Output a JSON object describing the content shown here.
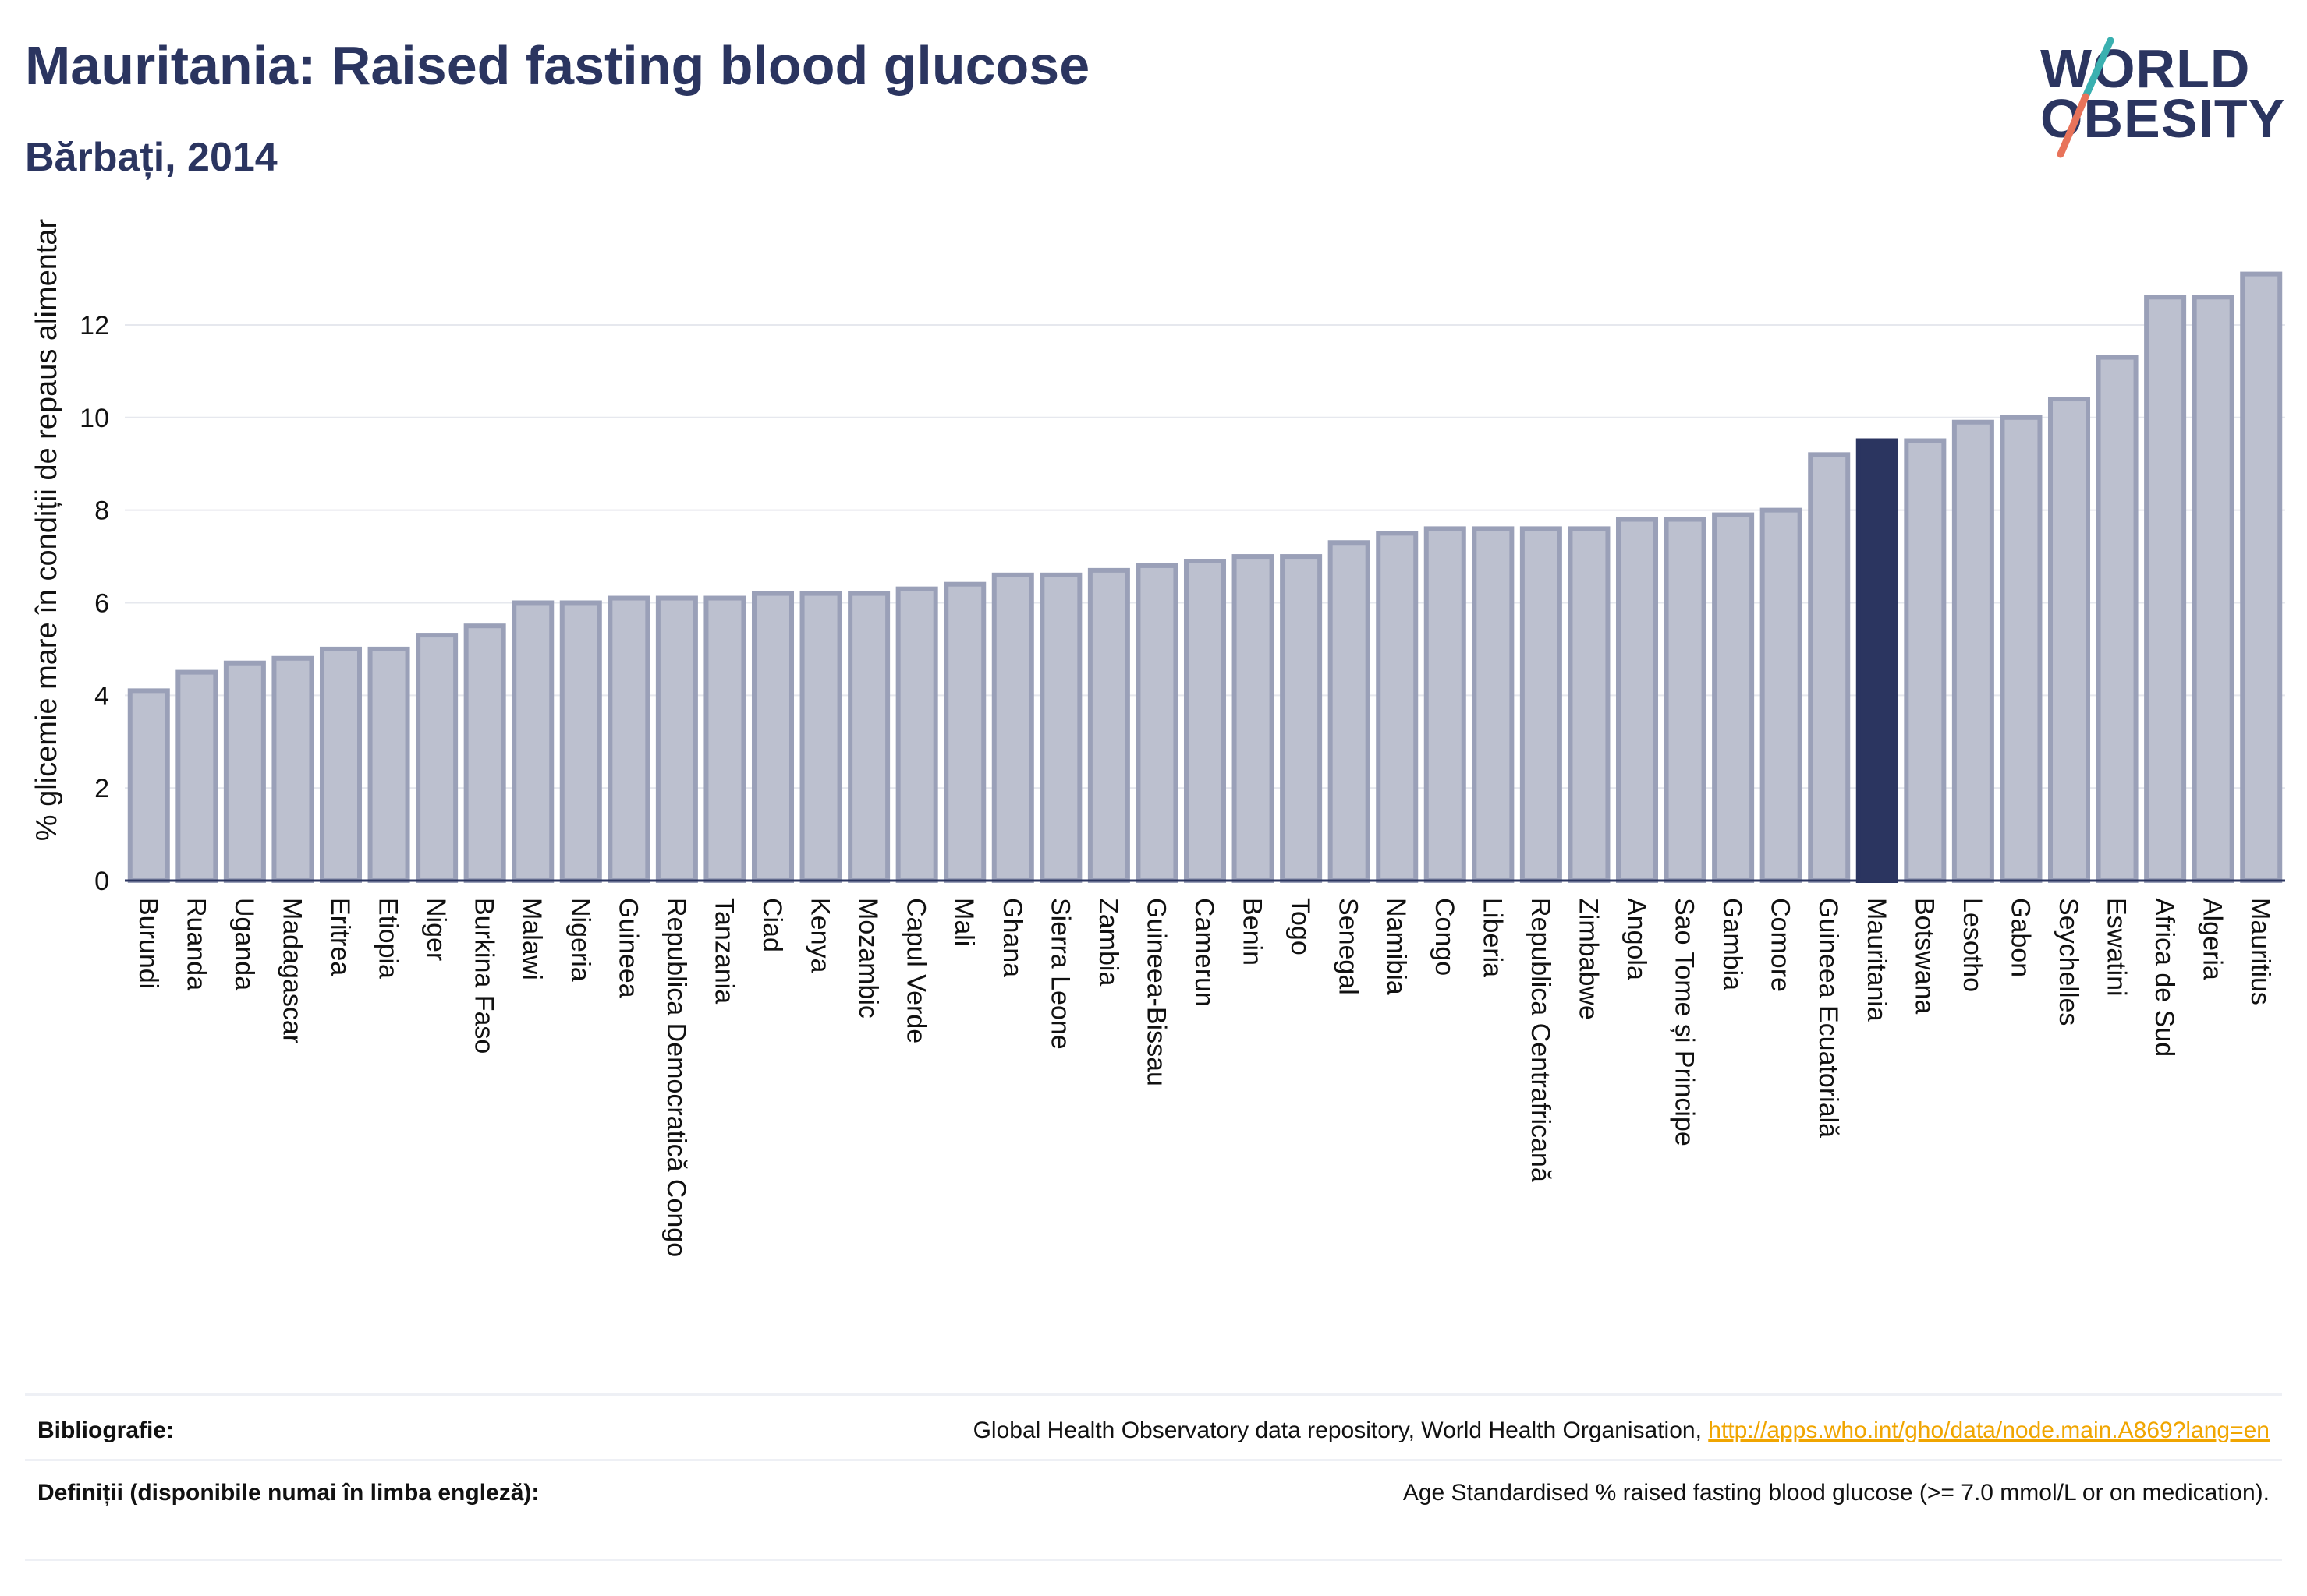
{
  "header": {
    "title": "Mauritania: Raised fasting blood glucose",
    "subtitle": "Bărbați, 2014"
  },
  "logo": {
    "line1": "WORLD",
    "line2": "OBESITY"
  },
  "colors": {
    "bar": "#bcc0cf",
    "bar_border": "#9aa0b8",
    "highlight": "#2b3560",
    "grid": "#e6e8ee",
    "axis": "#2b3560"
  },
  "chart_data": {
    "type": "bar",
    "ylabel": "% glicemie mare în condiții de repaus alimentar",
    "ylim": [
      0,
      13.8
    ],
    "yticks": [
      0,
      2,
      4,
      6,
      8,
      10,
      12
    ],
    "grid": true,
    "highlight": "Mauritania",
    "categories": [
      "Burundi",
      "Ruanda",
      "Uganda",
      "Madagascar",
      "Eritrea",
      "Etiopia",
      "Niger",
      "Burkina Faso",
      "Malawi",
      "Nigeria",
      "Guineea",
      "Republica Democratică Congo",
      "Tanzania",
      "Ciad",
      "Kenya",
      "Mozambic",
      "Capul Verde",
      "Mali",
      "Ghana",
      "Sierra Leone",
      "Zambia",
      "Guineea-Bissau",
      "Camerun",
      "Benin",
      "Togo",
      "Senegal",
      "Namibia",
      "Congo",
      "Liberia",
      "Republica Centrafricană",
      "Zimbabwe",
      "Angola",
      "Sao Tome și Principe",
      "Gambia",
      "Comore",
      "Guineea Ecuatorială",
      "Mauritania",
      "Botswana",
      "Lesotho",
      "Gabon",
      "Seychelles",
      "Eswatini",
      "Africa de Sud",
      "Algeria",
      "Mauritius"
    ],
    "values": [
      4.1,
      4.5,
      4.7,
      4.8,
      5.0,
      5.0,
      5.3,
      5.5,
      6.0,
      6.0,
      6.1,
      6.1,
      6.1,
      6.2,
      6.2,
      6.2,
      6.3,
      6.4,
      6.6,
      6.6,
      6.7,
      6.8,
      6.9,
      7.0,
      7.0,
      7.3,
      7.5,
      7.6,
      7.6,
      7.6,
      7.6,
      7.8,
      7.8,
      7.9,
      8.0,
      9.2,
      9.5,
      9.5,
      9.9,
      10.0,
      10.4,
      11.3,
      12.6,
      12.6,
      13.1
    ]
  },
  "footer": {
    "bibliography_label": "Bibliografie:",
    "bibliography_text": "Global Health Observatory data repository, World Health Organisation, ",
    "bibliography_link": "http://apps.who.int/gho/data/node.main.A869?lang=en",
    "definitions_label": "Definiții (disponibile numai în limba engleză):",
    "definitions_text": "Age Standardised % raised fasting blood glucose (>= 7.0 mmol/L or on medication)."
  }
}
